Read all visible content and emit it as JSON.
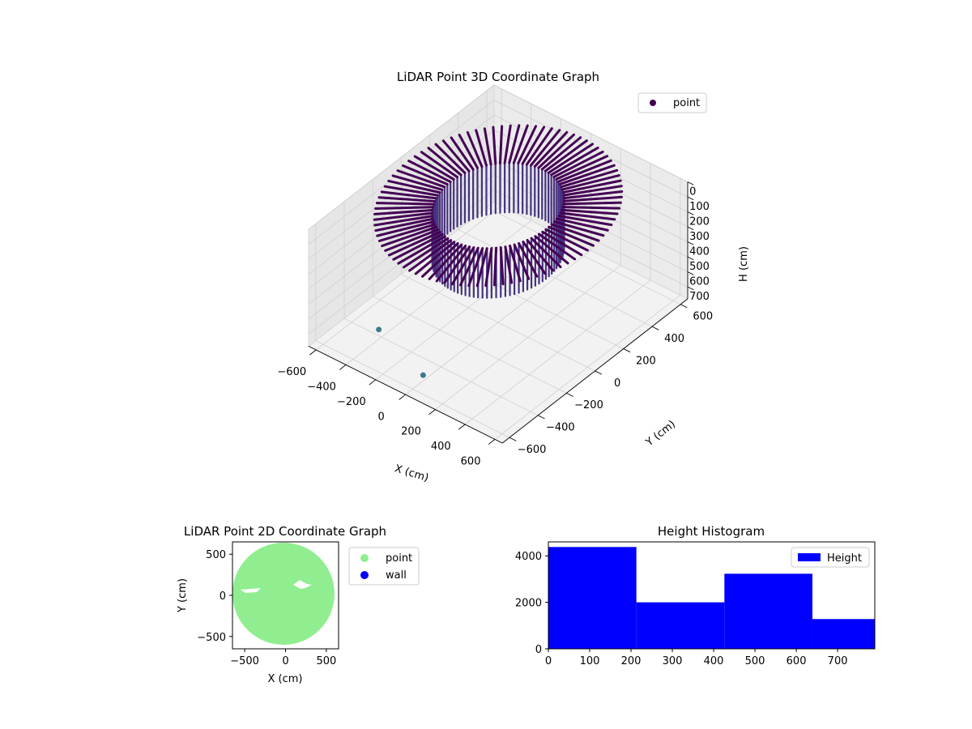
{
  "chart_data": [
    {
      "type": "scatter",
      "projection": "3d",
      "title": "LiDAR Point 3D Coordinate Graph",
      "xlabel": "X (cm)",
      "ylabel": "Y (cm)",
      "zlabel": "H (cm)",
      "xlim": [
        -650,
        650
      ],
      "ylim": [
        -650,
        650
      ],
      "zlim": [
        0,
        780
      ],
      "z_inverted": true,
      "xticks": [
        -600,
        -400,
        -200,
        0,
        200,
        400,
        600
      ],
      "yticks": [
        -600,
        -400,
        -200,
        0,
        200,
        400,
        600
      ],
      "zticks": [
        0,
        100,
        200,
        300,
        400,
        500,
        600,
        700
      ],
      "colormap": "viridis",
      "grid": true,
      "legend": {
        "position": "upper-right",
        "entries": [
          {
            "label": "point",
            "color": "#440154"
          }
        ]
      },
      "series": [
        {
          "name": "point",
          "shape": "ring-of-vertical-columns",
          "outer_radius_cm": 600,
          "inner_radius_cm": 320,
          "height_range_cm": [
            0,
            780
          ],
          "outliers": [
            {
              "x": -380,
              "y": -440,
              "h": 690
            },
            {
              "x": 80,
              "y": -610,
              "h": 640
            }
          ]
        }
      ]
    },
    {
      "type": "scatter",
      "title": "LiDAR Point 2D Coordinate Graph",
      "xlabel": "X (cm)",
      "ylabel": "Y (cm)",
      "xlim": [
        -650,
        650
      ],
      "ylim": [
        -650,
        650
      ],
      "xticks": [
        -500,
        0,
        500
      ],
      "yticks": [
        -500,
        0,
        500
      ],
      "legend": {
        "position": "outside-right",
        "entries": [
          {
            "label": "point",
            "color": "#90ee90"
          },
          {
            "label": "wall",
            "color": "#0000ff"
          }
        ]
      },
      "series": [
        {
          "name": "point",
          "color": "#90ee90",
          "shape": "filled-disk",
          "radius_cm": 600
        },
        {
          "name": "wall",
          "color": "#0000ff",
          "points": []
        }
      ]
    },
    {
      "type": "bar",
      "subtype": "histogram",
      "title": "Height Histogram",
      "xlim": [
        0,
        790
      ],
      "ylim": [
        0,
        4600
      ],
      "xticks": [
        0,
        100,
        200,
        300,
        400,
        500,
        600,
        700
      ],
      "yticks": [
        0,
        2000,
        4000
      ],
      "bin_edges": [
        0,
        213,
        426,
        639,
        790
      ],
      "values": [
        4380,
        2000,
        3230,
        1280
      ],
      "color": "#0000ff",
      "legend": {
        "position": "upper-right",
        "entries": [
          {
            "label": "Height",
            "color": "#0000ff"
          }
        ]
      }
    }
  ]
}
